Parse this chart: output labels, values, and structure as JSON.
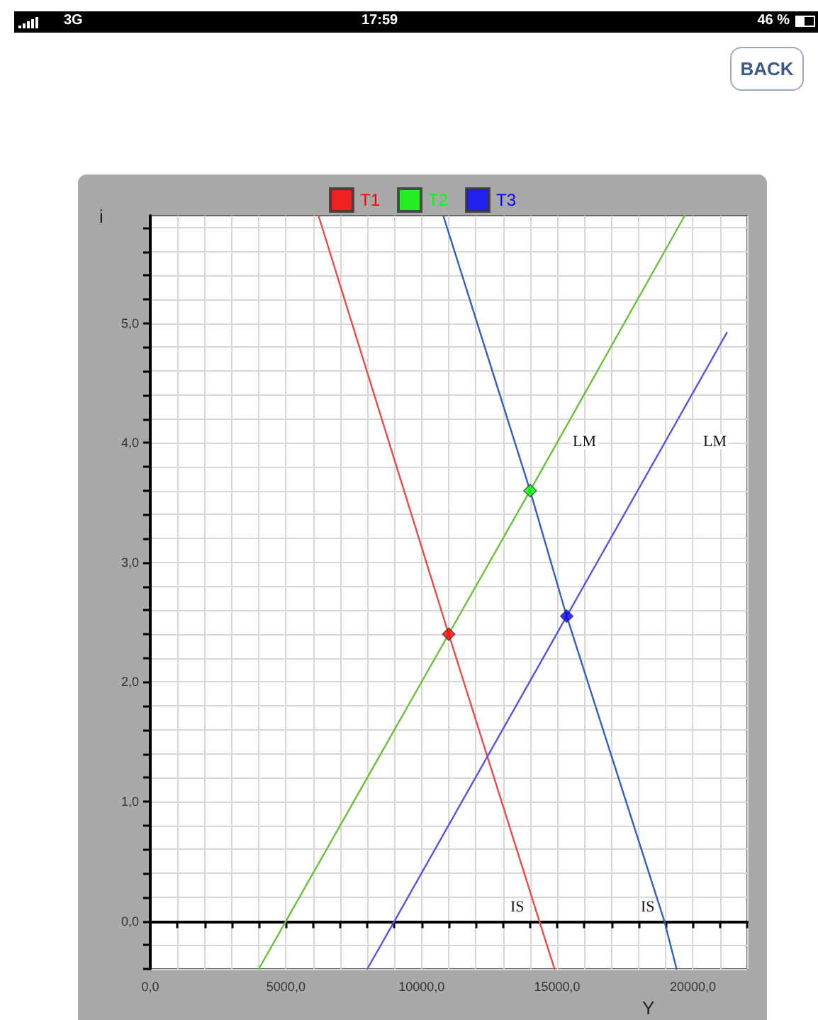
{
  "chart_data": {
    "type": "line",
    "xlabel": "Y",
    "ylabel": "i",
    "legend": "top",
    "grid": true,
    "xlim": [
      0,
      22000
    ],
    "ylim": [
      -0.4,
      5.9
    ],
    "xticks": [
      {
        "value": 0,
        "label": "0,0"
      },
      {
        "value": 1000,
        "label": null
      },
      {
        "value": 2000,
        "label": null
      },
      {
        "value": 3000,
        "label": null
      },
      {
        "value": 4000,
        "label": null
      },
      {
        "value": 5000,
        "label": "5000,0"
      },
      {
        "value": 6000,
        "label": null
      },
      {
        "value": 7000,
        "label": null
      },
      {
        "value": 8000,
        "label": null
      },
      {
        "value": 9000,
        "label": null
      },
      {
        "value": 10000,
        "label": "10000,0"
      },
      {
        "value": 11000,
        "label": null
      },
      {
        "value": 12000,
        "label": null
      },
      {
        "value": 13000,
        "label": null
      },
      {
        "value": 14000,
        "label": null
      },
      {
        "value": 15000,
        "label": "15000,0"
      },
      {
        "value": 16000,
        "label": null
      },
      {
        "value": 17000,
        "label": null
      },
      {
        "value": 18000,
        "label": null
      },
      {
        "value": 19000,
        "label": null
      },
      {
        "value": 20000,
        "label": "20000,0"
      },
      {
        "value": 21000,
        "label": null
      },
      {
        "value": 22000,
        "label": null
      }
    ],
    "yticks": [
      {
        "value": -0.4,
        "label": null
      },
      {
        "value": -0.2,
        "label": null
      },
      {
        "value": 0,
        "label": "0,0"
      },
      {
        "value": 0.2,
        "label": null
      },
      {
        "value": 0.4,
        "label": null
      },
      {
        "value": 0.6,
        "label": null
      },
      {
        "value": 0.8,
        "label": null
      },
      {
        "value": 1,
        "label": "1,0"
      },
      {
        "value": 1.2,
        "label": null
      },
      {
        "value": 1.4,
        "label": null
      },
      {
        "value": 1.6,
        "label": null
      },
      {
        "value": 1.8,
        "label": null
      },
      {
        "value": 2,
        "label": "2,0"
      },
      {
        "value": 2.2,
        "label": null
      },
      {
        "value": 2.4,
        "label": null
      },
      {
        "value": 2.6,
        "label": null
      },
      {
        "value": 2.8,
        "label": null
      },
      {
        "value": 3,
        "label": "3,0"
      },
      {
        "value": 3.2,
        "label": null
      },
      {
        "value": 3.4,
        "label": null
      },
      {
        "value": 3.6,
        "label": null
      },
      {
        "value": 3.8,
        "label": null
      },
      {
        "value": 4,
        "label": "4,0"
      },
      {
        "value": 4.2,
        "label": null
      },
      {
        "value": 4.4,
        "label": null
      },
      {
        "value": 4.6,
        "label": null
      },
      {
        "value": 4.8,
        "label": null
      },
      {
        "value": 5,
        "label": "5,0"
      },
      {
        "value": 5.2,
        "label": null
      },
      {
        "value": 5.4,
        "label": null
      },
      {
        "value": 5.6,
        "label": null
      },
      {
        "value": 5.8,
        "label": null
      }
    ],
    "series": [
      {
        "marker": "none",
        "color": "#e84a4a",
        "x": [
          6200,
          11000,
          14900
        ],
        "values": [
          5.9,
          2.4,
          -0.4
        ]
      },
      {
        "marker": "none",
        "color": "#66c23a",
        "x": [
          4000,
          5000,
          11000,
          14000,
          19700
        ],
        "values": [
          -0.4,
          0,
          2.4,
          3.6,
          5.9
        ]
      },
      {
        "marker": "none",
        "color": "#2f5fc0",
        "x": [
          10800,
          14000,
          15350,
          18950,
          19400
        ],
        "values": [
          5.9,
          3.6,
          2.55,
          0,
          -0.4
        ]
      },
      {
        "marker": "none",
        "color": "#5a52e0",
        "x": [
          8000,
          9000,
          15350,
          21250
        ],
        "values": [
          -0.4,
          0,
          2.55,
          4.92
        ]
      },
      {
        "type": "scatter",
        "marker": "diamond",
        "name": "T1",
        "color": "#ff0000",
        "x": [
          11000
        ],
        "values": [
          2.4
        ]
      },
      {
        "type": "scatter",
        "marker": "diamond",
        "name": "T2",
        "color": "#00ff00",
        "x": [
          14000
        ],
        "values": [
          3.6
        ]
      },
      {
        "type": "scatter",
        "marker": "diamond",
        "name": "T3",
        "color": "#0000ff",
        "x": [
          15350
        ],
        "values": [
          2.55
        ]
      }
    ],
    "annotations": [
      "LM",
      "LM",
      "IS",
      "IS",
      "3G",
      "17:59",
      "46 %",
      "BACK"
    ]
  }
}
